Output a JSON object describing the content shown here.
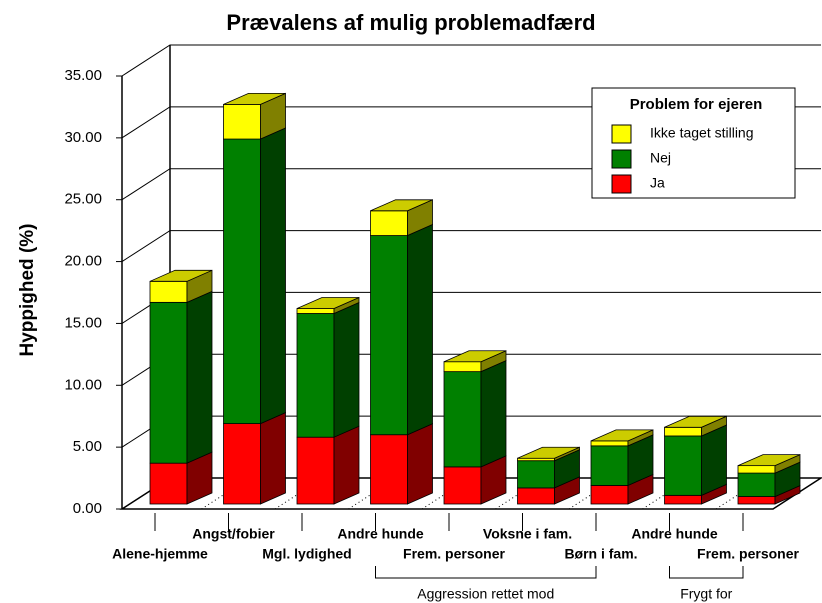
{
  "chart_data": {
    "type": "bar3d_stacked",
    "title": "Prævalens af mulig problemadfærd",
    "y_label": "Hyppighed (%)",
    "categories": [
      "Alene-hjemme",
      "Angst/fobier",
      "Mgl. lydighed",
      "Andre hunde",
      "Frem. personer",
      "Voksne i fam.",
      "Børn i fam.",
      "Andre hunde",
      "Frem. personer"
    ],
    "groups": [
      {
        "label": "Aggression rettet mod"
      },
      {
        "label": "Frygt for"
      }
    ],
    "legend_title": "Problem for ejeren",
    "series": [
      {
        "name": "Ja",
        "color": "#ff0000",
        "values": [
          3.3,
          6.5,
          5.4,
          5.6,
          3.0,
          1.3,
          1.5,
          0.7,
          0.6
        ]
      },
      {
        "name": "Nej",
        "color": "#008000",
        "values": [
          13.0,
          23.0,
          10.0,
          16.1,
          7.7,
          2.2,
          3.2,
          4.8,
          1.9
        ]
      },
      {
        "name": "Ikke taget stilling",
        "color": "#ffff00",
        "values": [
          1.7,
          2.8,
          0.4,
          2.0,
          0.8,
          0.2,
          0.4,
          0.7,
          0.6
        ]
      }
    ],
    "ylim": [
      0,
      35
    ],
    "yticks": [
      {
        "value": 0,
        "label": "0.00"
      },
      {
        "value": 5,
        "label": "5.00"
      },
      {
        "value": 10,
        "label": "10.00"
      },
      {
        "value": 15,
        "label": "15.00"
      },
      {
        "value": 20,
        "label": "20.00"
      },
      {
        "value": 25,
        "label": "25.00"
      },
      {
        "value": 30,
        "label": "30.00"
      },
      {
        "value": 35,
        "label": "35.00"
      }
    ],
    "grid": true,
    "legend": "upper right"
  }
}
